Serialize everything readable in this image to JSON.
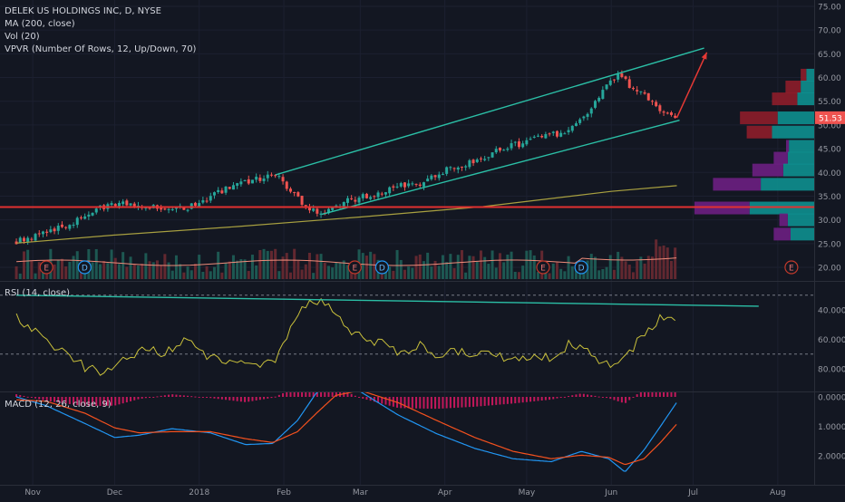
{
  "legend": {
    "title": "DELEK US HOLDINGS INC, D, NYSE",
    "ma": "MA (200, close)",
    "vol": "Vol (20)",
    "vpvr": "VPVR (Number Of Rows, 12, Up/Down, 70)"
  },
  "rsi_legend": "RSI (14, close)",
  "macd_legend": "MACD (12, 26, close, 9)",
  "last_price_label": "51.53",
  "earnings_marker": "E",
  "dividend_marker": "D",
  "colors": {
    "background": "#131722",
    "up": "#26a69a",
    "down": "#ef5350",
    "ma200": "#a8a040",
    "channel": "#2bbfa6",
    "support": "#e23030",
    "arrow": "#e53935",
    "rsi": "#c9c03b",
    "macd": "#2196f3",
    "signal": "#f4511e",
    "vpvr_up": "#0e8f8f",
    "vpvr_down": "#8e1d2a"
  },
  "chart_data": [
    {
      "type": "candlestick",
      "title": "DELEK US HOLDINGS INC, D, NYSE",
      "x_tick_labels": [
        "Nov",
        "Dec",
        "2018",
        "Feb",
        "Mar",
        "Apr",
        "May",
        "Jun",
        "Jul",
        "Aug"
      ],
      "y_ticks": [
        20,
        25,
        30,
        35,
        40,
        45,
        50,
        55,
        60,
        65,
        70,
        75
      ],
      "y_tick_labels": [
        "20.00",
        "25.00",
        "30.00",
        "35.00",
        "40.00",
        "45.00",
        "50.00",
        "55.00",
        "60.00",
        "65.00",
        "70.00",
        "75.00"
      ],
      "ylim": [
        18,
        75.5
      ],
      "last_price": 51.53,
      "close_path": [
        [
          "2017-10-26",
          25.6
        ],
        [
          "2017-11-01",
          26.5
        ],
        [
          "2017-11-08",
          27.8
        ],
        [
          "2017-11-15",
          29.2
        ],
        [
          "2017-11-21",
          31.0
        ],
        [
          "2017-11-28",
          33.0
        ],
        [
          "2017-12-05",
          33.2
        ],
        [
          "2017-12-12",
          32.6
        ],
        [
          "2017-12-19",
          32.7
        ],
        [
          "2017-12-27",
          32.4
        ],
        [
          "2018-01-03",
          34.2
        ],
        [
          "2018-01-10",
          36.2
        ],
        [
          "2018-01-17",
          37.6
        ],
        [
          "2018-01-24",
          38.8
        ],
        [
          "2018-01-29",
          39.3
        ],
        [
          "2018-02-02",
          37.0
        ],
        [
          "2018-02-07",
          33.8
        ],
        [
          "2018-02-12",
          31.6
        ],
        [
          "2018-02-16",
          31.6
        ],
        [
          "2018-02-22",
          33.6
        ],
        [
          "2018-03-01",
          34.8
        ],
        [
          "2018-03-08",
          35.2
        ],
        [
          "2018-03-15",
          37.2
        ],
        [
          "2018-03-22",
          37.6
        ],
        [
          "2018-03-29",
          39.6
        ],
        [
          "2018-04-05",
          41.2
        ],
        [
          "2018-04-12",
          42.6
        ],
        [
          "2018-04-19",
          44.3
        ],
        [
          "2018-04-26",
          45.6
        ],
        [
          "2018-05-03",
          47.0
        ],
        [
          "2018-05-10",
          47.8
        ],
        [
          "2018-05-17",
          49.2
        ],
        [
          "2018-05-24",
          52.8
        ],
        [
          "2018-05-31",
          58.8
        ],
        [
          "2018-06-04",
          60.4
        ],
        [
          "2018-06-08",
          58.0
        ],
        [
          "2018-06-13",
          56.5
        ],
        [
          "2018-06-19",
          53.2
        ],
        [
          "2018-06-25",
          51.53
        ]
      ],
      "ma200": [
        [
          "2017-10-26",
          25.1
        ],
        [
          "2017-12-01",
          26.8
        ],
        [
          "2018-01-15",
          28.6
        ],
        [
          "2018-03-01",
          30.6
        ],
        [
          "2018-04-15",
          32.8
        ],
        [
          "2018-06-01",
          36.0
        ],
        [
          "2018-06-25",
          37.2
        ]
      ],
      "channel_upper": [
        [
          "2018-01-29",
          39.5
        ],
        [
          "2018-07-05",
          66.2
        ]
      ],
      "channel_lower": [
        [
          "2018-02-15",
          31.2
        ],
        [
          "2018-06-26",
          51.0
        ]
      ],
      "support_level": 32.7,
      "projection_arrow": [
        [
          "2018-06-25",
          51.5
        ],
        [
          "2018-07-06",
          65.3
        ]
      ],
      "earnings_dates": [
        "2017-11-06",
        "2018-02-27",
        "2018-05-07",
        "2018-08-06"
      ],
      "dividend_dates": [
        "2017-11-20",
        "2018-03-09",
        "2018-05-21"
      ]
    },
    {
      "type": "bar",
      "title": "VPVR (Number Of Rows, 12, Up/Down, 70)",
      "rows": [
        {
          "price": 60.5,
          "up": 14,
          "down": 10
        },
        {
          "price": 58.0,
          "up": 24,
          "down": 27
        },
        {
          "price": 55.5,
          "up": 30,
          "down": 45
        },
        {
          "price": 51.5,
          "up": 65,
          "down": 67
        },
        {
          "price": 48.5,
          "up": 75,
          "down": 45
        },
        {
          "price": 45.5,
          "up": 45,
          "down": 5
        },
        {
          "price": 43.0,
          "up": 47,
          "down": 25
        },
        {
          "price": 40.5,
          "up": 55,
          "down": 55
        },
        {
          "price": 37.5,
          "up": 95,
          "down": 85
        },
        {
          "price": 32.5,
          "up": 115,
          "down": 98
        },
        {
          "price": 30.0,
          "up": 47,
          "down": 15
        },
        {
          "price": 27.0,
          "up": 42,
          "down": 30
        }
      ]
    },
    {
      "type": "line",
      "title": "RSI (14, close)",
      "y_ticks": [
        40,
        60,
        80
      ],
      "y_tick_labels": [
        "40.0000",
        "60.0000",
        "80.0000"
      ],
      "ylim": [
        29,
        89
      ],
      "upper_band": 70,
      "lower_band": 30,
      "series": [
        {
          "values": [
            [
              "2017-10-26",
              46
            ],
            [
              "2017-11-01",
              54
            ],
            [
              "2017-11-08",
              63
            ],
            [
              "2017-11-15",
              73
            ],
            [
              "2017-11-21",
              80
            ],
            [
              "2017-11-28",
              82
            ],
            [
              "2017-12-05",
              74
            ],
            [
              "2017-12-12",
              66
            ],
            [
              "2017-12-19",
              69
            ],
            [
              "2017-12-27",
              60
            ],
            [
              "2018-01-03",
              71
            ],
            [
              "2018-01-10",
              74
            ],
            [
              "2018-01-17",
              76
            ],
            [
              "2018-01-24",
              76
            ],
            [
              "2018-01-29",
              74
            ],
            [
              "2018-02-02",
              57
            ],
            [
              "2018-02-07",
              40
            ],
            [
              "2018-02-12",
              33
            ],
            [
              "2018-02-16",
              36
            ],
            [
              "2018-02-22",
              48
            ],
            [
              "2018-03-01",
              58
            ],
            [
              "2018-03-08",
              62
            ],
            [
              "2018-03-15",
              70
            ],
            [
              "2018-03-22",
              64
            ],
            [
              "2018-03-29",
              71
            ],
            [
              "2018-04-05",
              68
            ],
            [
              "2018-04-12",
              72
            ],
            [
              "2018-04-19",
              70
            ],
            [
              "2018-04-26",
              74
            ],
            [
              "2018-05-03",
              70
            ],
            [
              "2018-05-10",
              72
            ],
            [
              "2018-05-17",
              63
            ],
            [
              "2018-05-24",
              68
            ],
            [
              "2018-05-31",
              78
            ],
            [
              "2018-06-04",
              79
            ],
            [
              "2018-06-08",
              67
            ],
            [
              "2018-06-13",
              58
            ],
            [
              "2018-06-19",
              46
            ],
            [
              "2018-06-25",
              45
            ]
          ]
        }
      ],
      "trendline": [
        [
          "2017-10-26",
          30
        ],
        [
          "2018-07-25",
          37.5
        ]
      ]
    },
    {
      "type": "line",
      "title": "MACD (12, 26, close, 9)",
      "y_ticks": [
        0,
        1,
        2
      ],
      "y_tick_labels": [
        "0.0000",
        "1.0000",
        "2.0000"
      ],
      "ylim": [
        -0.65,
        2.12
      ],
      "series": [
        {
          "values": [
            [
              "2017-10-26",
              0.0
            ],
            [
              "2017-11-06",
              0.3
            ],
            [
              "2017-11-20",
              0.9
            ],
            [
              "2017-12-01",
              1.38
            ],
            [
              "2017-12-10",
              1.3
            ],
            [
              "2017-12-22",
              1.08
            ],
            [
              "2018-01-05",
              1.22
            ],
            [
              "2018-01-18",
              1.62
            ],
            [
              "2018-01-28",
              1.58
            ],
            [
              "2018-02-06",
              0.8
            ],
            [
              "2018-02-13",
              -0.15
            ],
            [
              "2018-02-20",
              -0.42
            ],
            [
              "2018-03-01",
              -0.18
            ],
            [
              "2018-03-15",
              0.62
            ],
            [
              "2018-03-29",
              1.25
            ],
            [
              "2018-04-12",
              1.75
            ],
            [
              "2018-04-26",
              2.1
            ],
            [
              "2018-05-10",
              2.2
            ],
            [
              "2018-05-21",
              1.85
            ],
            [
              "2018-05-31",
              2.1
            ],
            [
              "2018-06-06",
              2.55
            ],
            [
              "2018-06-13",
              1.8
            ],
            [
              "2018-06-19",
              1.0
            ],
            [
              "2018-06-25",
              0.18
            ]
          ]
        },
        {
          "values": [
            [
              "2017-10-26",
              0.1
            ],
            [
              "2017-11-06",
              0.15
            ],
            [
              "2017-11-20",
              0.55
            ],
            [
              "2017-12-01",
              1.05
            ],
            [
              "2017-12-10",
              1.22
            ],
            [
              "2017-12-22",
              1.18
            ],
            [
              "2018-01-05",
              1.18
            ],
            [
              "2018-01-18",
              1.42
            ],
            [
              "2018-01-28",
              1.55
            ],
            [
              "2018-02-06",
              1.18
            ],
            [
              "2018-02-13",
              0.55
            ],
            [
              "2018-02-20",
              -0.05
            ],
            [
              "2018-03-01",
              -0.22
            ],
            [
              "2018-03-15",
              0.2
            ],
            [
              "2018-03-29",
              0.8
            ],
            [
              "2018-04-12",
              1.38
            ],
            [
              "2018-04-26",
              1.85
            ],
            [
              "2018-05-10",
              2.1
            ],
            [
              "2018-05-21",
              1.98
            ],
            [
              "2018-05-31",
              2.05
            ],
            [
              "2018-06-06",
              2.3
            ],
            [
              "2018-06-13",
              2.1
            ],
            [
              "2018-06-19",
              1.55
            ],
            [
              "2018-06-25",
              0.92
            ]
          ]
        }
      ]
    }
  ]
}
